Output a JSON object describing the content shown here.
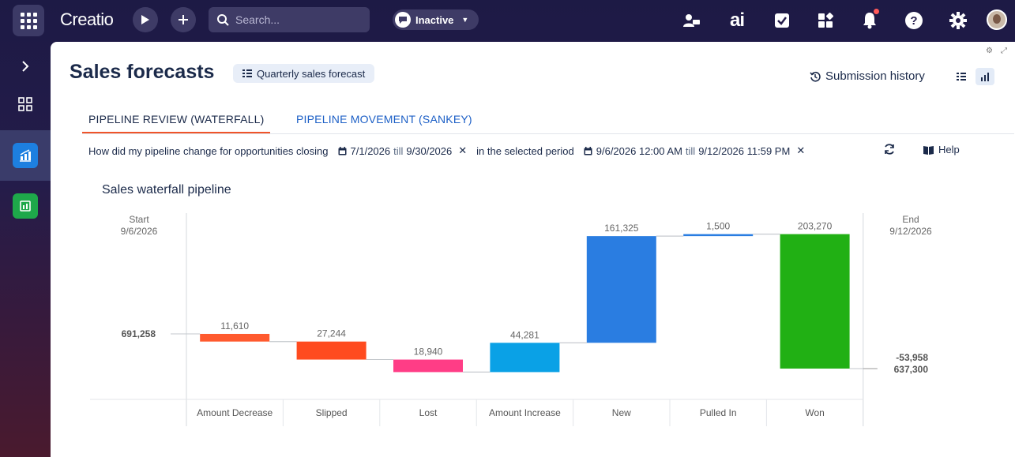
{
  "topbar": {
    "logo": "Creatio",
    "search_placeholder": "Search...",
    "status_label": "Inactive",
    "ai_label": "ai"
  },
  "page": {
    "title": "Sales forecasts",
    "forecast_chip": "Quarterly sales forecast",
    "submission_history": "Submission history"
  },
  "tabs": [
    {
      "label": "PIPELINE REVIEW (WATERFALL)",
      "active": true
    },
    {
      "label": "PIPELINE MOVEMENT (SANKEY)",
      "active": false
    }
  ],
  "filters": {
    "question": "How did my pipeline change for opportunities closing",
    "close_from": "7/1/2026",
    "till1": "till",
    "close_to": "9/30/2026",
    "period_text": "in the selected period",
    "period_from": "9/6/2026 12:00 AM",
    "till2": "till",
    "period_to": "9/12/2026 11:59 PM",
    "help": "Help"
  },
  "chart_data": {
    "type": "bar",
    "title": "Sales waterfall pipeline",
    "start_label": "Start",
    "start_date": "9/6/2026",
    "start_value": "691,258",
    "end_label": "End",
    "end_date": "9/12/2026",
    "end_change": "-53,958",
    "end_value": "637,300",
    "categories": [
      "Amount Decrease",
      "Slipped",
      "Lost",
      "Amount Increase",
      "New",
      "Pulled In",
      "Won"
    ],
    "values": [
      11610,
      27244,
      18940,
      44281,
      161325,
      1500,
      203270
    ],
    "value_labels": [
      "11,610",
      "27,244",
      "18,940",
      "44,281",
      "161,325",
      "1,500",
      "203,270"
    ],
    "directions": [
      "down",
      "down",
      "down",
      "up",
      "up",
      "up",
      "down"
    ],
    "colors": [
      "#ff5a2e",
      "#ff4b1f",
      "#ff3d86",
      "#0aa1e6",
      "#2a7de1",
      "#2a7de1",
      "#21b014"
    ]
  }
}
